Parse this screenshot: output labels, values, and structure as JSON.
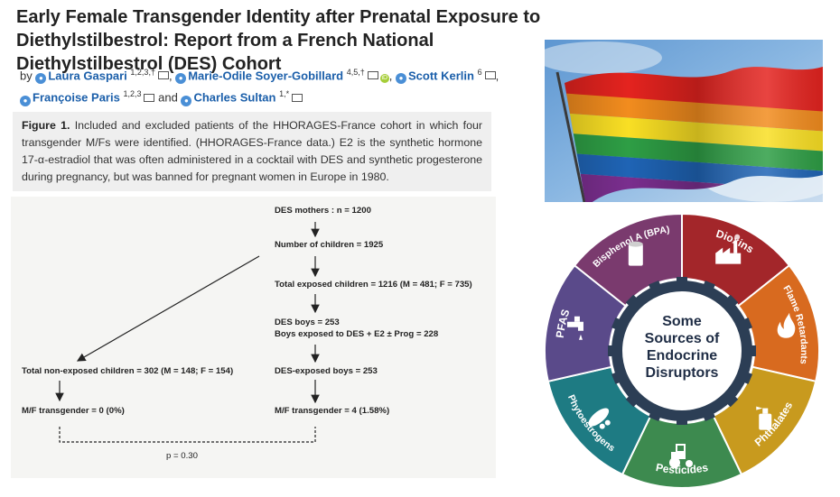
{
  "article": {
    "title": "Early Female Transgender Identity after Prenatal Exposure to Diethylstilbestrol: Report from a French National Diethylstilbestrol (DES) Cohort",
    "by": "by",
    "and": "and",
    "authors": [
      {
        "name": "Laura Gaspari",
        "sup": "1,2,3,†"
      },
      {
        "name": "Marie-Odile Soyer-Gobillard",
        "sup": "4,5,†"
      },
      {
        "name": "Scott Kerlin",
        "sup": "6"
      },
      {
        "name": "Françoise Paris",
        "sup": "1,2,3"
      },
      {
        "name": "Charles Sultan",
        "sup": "1,*"
      }
    ]
  },
  "caption": {
    "label": "Figure 1.",
    "text": "Included and excluded patients of the HHORAGES-France cohort in which four transgender M/Fs were identified. (HHORAGES-France data.) E2 is the synthetic hormone 17-α-estradiol that was often administered in a cocktail with DES and synthetic progesterone during pregnancy, but was banned for pregnant women in Europe in 1980."
  },
  "flowchart": {
    "mothers": "DES mothers :   n = 1200",
    "children": "Number of children = 1925",
    "exposed": "Total exposed children = 1216  (M = 481; F = 735)",
    "boys": "DES boys = 253",
    "boys_e2": "Boys exposed to DES + E2 ± Prog = 228",
    "nonexposed": "Total non-exposed children = 302  (M = 148; F = 154)",
    "exposed_boys": "DES-exposed boys = 253",
    "mf_left": "M/F transgender = 0  (0%)",
    "mf_right": "M/F transgender = 4  (1.58%)",
    "p_value": "p = 0.30"
  },
  "wheel": {
    "center": [
      "Some",
      "Sources of",
      "Endocrine",
      "Disruptors"
    ],
    "segments": [
      {
        "label": "Dioxins",
        "color": "#a3262a",
        "icon": "factory-icon"
      },
      {
        "label": "Flame Retardants",
        "color": "#d86a1f",
        "icon": "fire-icon"
      },
      {
        "label": "Phthalates",
        "color": "#c89a1e",
        "icon": "spray-bottle-icon"
      },
      {
        "label": "Pesticides",
        "color": "#3d8a4f",
        "icon": "tractor-icon"
      },
      {
        "label": "Phytoestrogens",
        "color": "#1e7b83",
        "icon": "soybean-icon"
      },
      {
        "label": "PFAS",
        "color": "#5a4a8a",
        "icon": "faucet-icon"
      },
      {
        "label": "Bisphenol A (BPA)",
        "color": "#7a3a6e",
        "icon": "can-icon"
      }
    ]
  }
}
